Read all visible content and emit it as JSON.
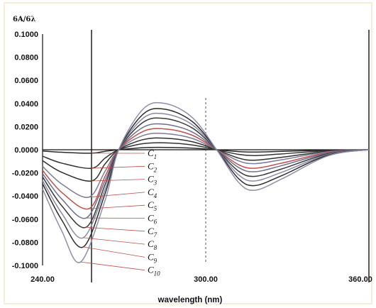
{
  "chart_data": {
    "type": "line",
    "ylabel": "6A/6λ",
    "xlabel": "wavelength  (nm)",
    "x_ticks": [
      "240.00",
      "300.00",
      "360.00"
    ],
    "y_ticks": [
      "0.1000",
      "0.0800",
      "0.0600",
      "0.0400",
      "0.0200",
      "0.0000",
      "-0.0200",
      "-0.0400",
      "-0.0600",
      "-0.0800",
      "-0.1000"
    ],
    "xlim": [
      240,
      360
    ],
    "ylim": [
      -0.1,
      0.1
    ],
    "grid": false,
    "vertical_lines": [
      {
        "x": 258,
        "style": "solid"
      },
      {
        "x": 300,
        "style": "dashed"
      },
      {
        "x": 360,
        "style": "solid"
      }
    ],
    "series": [
      {
        "label": "C1",
        "color": "#2a2a2a",
        "min_x": 258,
        "min_y": -0.003,
        "zero1": 268,
        "max_x": 285,
        "max_y": 0.002,
        "zero2": 304,
        "min2_x": 318,
        "min2_y": -0.002
      },
      {
        "label": "C2",
        "color": "#333333",
        "min_x": 258,
        "min_y": -0.016,
        "zero1": 268,
        "max_x": 285,
        "max_y": 0.006,
        "zero2": 304,
        "min2_x": 318,
        "min2_y": -0.005
      },
      {
        "label": "C3",
        "color": "#2f2f2f",
        "min_x": 258,
        "min_y": -0.027,
        "zero1": 268,
        "max_x": 285,
        "max_y": 0.01,
        "zero2": 304,
        "min2_x": 318,
        "min2_y": -0.009
      },
      {
        "label": "C4",
        "color": "#7d7d9a",
        "min_x": 257,
        "min_y": -0.041,
        "zero1": 268,
        "max_x": 285,
        "max_y": 0.014,
        "zero2": 304,
        "min2_x": 318,
        "min2_y": -0.012
      },
      {
        "label": "C5",
        "color": "#c0504d",
        "min_x": 257,
        "min_y": -0.051,
        "zero1": 268,
        "max_x": 285,
        "max_y": 0.018,
        "zero2": 304,
        "min2_x": 318,
        "min2_y": -0.016
      },
      {
        "label": "C6",
        "color": "#6e6e8e",
        "min_x": 256,
        "min_y": -0.059,
        "zero1": 268,
        "max_x": 285,
        "max_y": 0.022,
        "zero2": 304,
        "min2_x": 318,
        "min2_y": -0.019
      },
      {
        "label": "C7",
        "color": "#3a3a3a",
        "min_x": 256,
        "min_y": -0.067,
        "zero1": 268,
        "max_x": 285,
        "max_y": 0.027,
        "zero2": 304,
        "min2_x": 318,
        "min2_y": -0.023
      },
      {
        "label": "C8",
        "color": "#8a8aa5",
        "min_x": 255,
        "min_y": -0.076,
        "zero1": 268,
        "max_x": 285,
        "max_y": 0.031,
        "zero2": 304,
        "min2_x": 318,
        "min2_y": -0.027
      },
      {
        "label": "C9",
        "color": "#2c2c2c",
        "min_x": 255,
        "min_y": -0.084,
        "zero1": 268,
        "max_x": 285,
        "max_y": 0.035,
        "zero2": 304,
        "min2_x": 318,
        "min2_y": -0.031
      },
      {
        "label": "C10",
        "color": "#8f8fab",
        "min_x": 254,
        "min_y": -0.097,
        "zero1": 268,
        "max_x": 285,
        "max_y": 0.04,
        "zero2": 304,
        "min2_x": 318,
        "min2_y": -0.035
      }
    ]
  }
}
